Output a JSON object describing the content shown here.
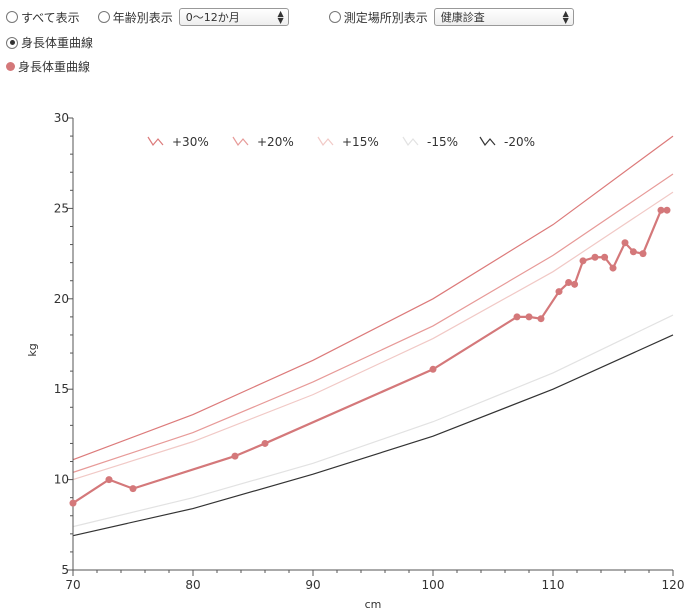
{
  "controls": {
    "show_all_label": "すべて表示",
    "by_age_label": "年齢別表示",
    "age_select_value": "0〜12か月",
    "by_place_label": "測定場所別表示",
    "place_select_value": "健康診査",
    "curve_radio_label": "身長体重曲線",
    "series_legend_label": "身長体重曲線"
  },
  "colors": {
    "measured": "#d4787a",
    "plus30": "#dc7a7a",
    "plus20": "#e79a98",
    "plus15": "#f1c9c6",
    "minus15": "#e2e2e2",
    "minus20": "#333333"
  },
  "chart_data": {
    "type": "line",
    "xlabel": "cm",
    "ylabel": "kg",
    "xlim": [
      70,
      120
    ],
    "ylim": [
      5,
      30
    ],
    "xticks": [
      70,
      80,
      90,
      100,
      110,
      120
    ],
    "yticks": [
      5,
      10,
      15,
      20,
      25,
      30
    ],
    "legend_position": "top",
    "reference_curves": [
      {
        "name": "+30%",
        "color_key": "plus30",
        "x": [
          70,
          80,
          90,
          100,
          110,
          120
        ],
        "y": [
          11.1,
          13.6,
          16.6,
          20.0,
          24.1,
          29.0
        ]
      },
      {
        "name": "+20%",
        "color_key": "plus20",
        "x": [
          70,
          80,
          90,
          100,
          110,
          120
        ],
        "y": [
          10.4,
          12.6,
          15.4,
          18.5,
          22.4,
          26.9
        ]
      },
      {
        "name": "+15%",
        "color_key": "plus15",
        "x": [
          70,
          80,
          90,
          100,
          110,
          120
        ],
        "y": [
          10.0,
          12.1,
          14.7,
          17.8,
          21.5,
          25.9
        ]
      },
      {
        "name": "-15%",
        "color_key": "minus15",
        "x": [
          70,
          80,
          90,
          100,
          110,
          120
        ],
        "y": [
          7.4,
          9.0,
          10.9,
          13.2,
          15.9,
          19.1
        ]
      },
      {
        "name": "-20%",
        "color_key": "minus20",
        "x": [
          70,
          80,
          90,
          100,
          110,
          120
        ],
        "y": [
          6.9,
          8.4,
          10.3,
          12.4,
          15.0,
          18.0
        ]
      }
    ],
    "series": [
      {
        "name": "身長体重曲線",
        "color_key": "measured",
        "x": [
          70,
          73,
          75,
          83.5,
          86,
          100,
          107,
          108,
          109,
          110.5,
          111.3,
          111.8,
          112.5,
          113.5,
          114.3,
          115,
          116,
          116.7,
          117.5,
          119,
          119.5
        ],
        "y": [
          8.7,
          10.0,
          9.5,
          11.3,
          12.0,
          16.1,
          19.0,
          19.0,
          18.9,
          20.4,
          20.9,
          20.8,
          22.1,
          22.3,
          22.3,
          21.7,
          23.1,
          22.6,
          22.5,
          24.9,
          24.9
        ]
      }
    ]
  }
}
